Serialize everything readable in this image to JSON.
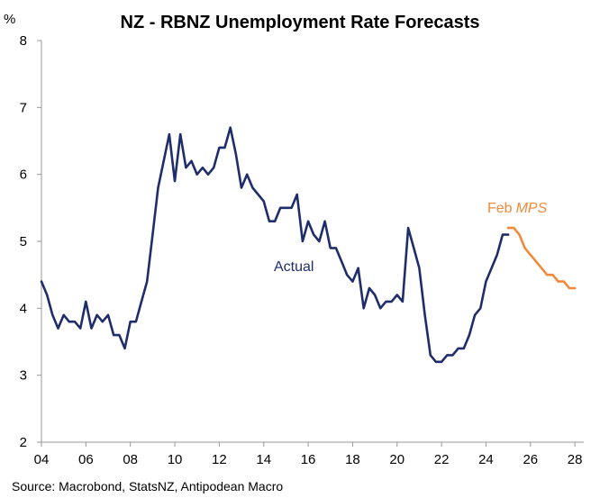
{
  "chart_data": {
    "type": "line",
    "title": "NZ - RBNZ Unemployment Rate Forecasts",
    "ylabel": "%",
    "xlabel": "",
    "source": "Source: Macrobond, StatsNZ, Antipodean Macro",
    "xlim": [
      2004,
      2028.4
    ],
    "ylim": [
      2,
      8
    ],
    "x_ticks": [
      2004,
      2006,
      2008,
      2010,
      2012,
      2014,
      2016,
      2018,
      2020,
      2022,
      2024,
      2026,
      2028
    ],
    "x_tick_labels": [
      "04",
      "06",
      "08",
      "10",
      "12",
      "14",
      "16",
      "18",
      "20",
      "22",
      "24",
      "26",
      "28"
    ],
    "y_ticks": [
      2,
      3,
      4,
      5,
      6,
      7,
      8
    ],
    "y_tick_labels": [
      "2",
      "3",
      "4",
      "5",
      "6",
      "7",
      "8"
    ],
    "grid": false,
    "series": [
      {
        "name": "Actual",
        "color": "#1f2d6b",
        "label_text": "Actual",
        "x": [
          2004.0,
          2004.25,
          2004.5,
          2004.75,
          2005.0,
          2005.25,
          2005.5,
          2005.75,
          2006.0,
          2006.25,
          2006.5,
          2006.75,
          2007.0,
          2007.25,
          2007.5,
          2007.75,
          2008.0,
          2008.25,
          2008.5,
          2008.75,
          2009.0,
          2009.25,
          2009.5,
          2009.75,
          2010.0,
          2010.25,
          2010.5,
          2010.75,
          2011.0,
          2011.25,
          2011.5,
          2011.75,
          2012.0,
          2012.25,
          2012.5,
          2012.75,
          2013.0,
          2013.25,
          2013.5,
          2013.75,
          2014.0,
          2014.25,
          2014.5,
          2014.75,
          2015.0,
          2015.25,
          2015.5,
          2015.75,
          2016.0,
          2016.25,
          2016.5,
          2016.75,
          2017.0,
          2017.25,
          2017.5,
          2017.75,
          2018.0,
          2018.25,
          2018.5,
          2018.75,
          2019.0,
          2019.25,
          2019.5,
          2019.75,
          2020.0,
          2020.25,
          2020.5,
          2020.75,
          2021.0,
          2021.25,
          2021.5,
          2021.75,
          2022.0,
          2022.25,
          2022.5,
          2022.75,
          2023.0,
          2023.25,
          2023.5,
          2023.75,
          2024.0,
          2024.25,
          2024.5,
          2024.75,
          2025.0
        ],
        "values": [
          4.4,
          4.2,
          3.9,
          3.7,
          3.9,
          3.8,
          3.8,
          3.7,
          4.1,
          3.7,
          3.9,
          3.8,
          3.9,
          3.6,
          3.6,
          3.4,
          3.8,
          3.8,
          4.1,
          4.4,
          5.1,
          5.8,
          6.2,
          6.6,
          5.9,
          6.6,
          6.1,
          6.2,
          6.0,
          6.1,
          6.0,
          6.1,
          6.4,
          6.4,
          6.7,
          6.3,
          5.8,
          6.0,
          5.8,
          5.7,
          5.6,
          5.3,
          5.3,
          5.5,
          5.5,
          5.5,
          5.7,
          5.0,
          5.3,
          5.1,
          5.0,
          5.3,
          4.9,
          4.9,
          4.7,
          4.5,
          4.4,
          4.6,
          4.0,
          4.3,
          4.2,
          4.0,
          4.1,
          4.1,
          4.2,
          4.1,
          5.2,
          4.9,
          4.6,
          3.9,
          3.3,
          3.2,
          3.2,
          3.3,
          3.3,
          3.4,
          3.4,
          3.6,
          3.9,
          4.0,
          4.4,
          4.6,
          4.8,
          5.1,
          5.1
        ]
      },
      {
        "name": "Feb MPS",
        "color": "#f08a3a",
        "label_text": "Feb",
        "label_italic": "MPS",
        "x": [
          2025.0,
          2025.25,
          2025.5,
          2025.75,
          2026.0,
          2026.25,
          2026.5,
          2026.75,
          2027.0,
          2027.25,
          2027.5,
          2027.75,
          2028.0
        ],
        "values": [
          5.2,
          5.2,
          5.1,
          4.9,
          4.8,
          4.7,
          4.6,
          4.5,
          4.5,
          4.4,
          4.4,
          4.3,
          4.3
        ]
      }
    ]
  }
}
